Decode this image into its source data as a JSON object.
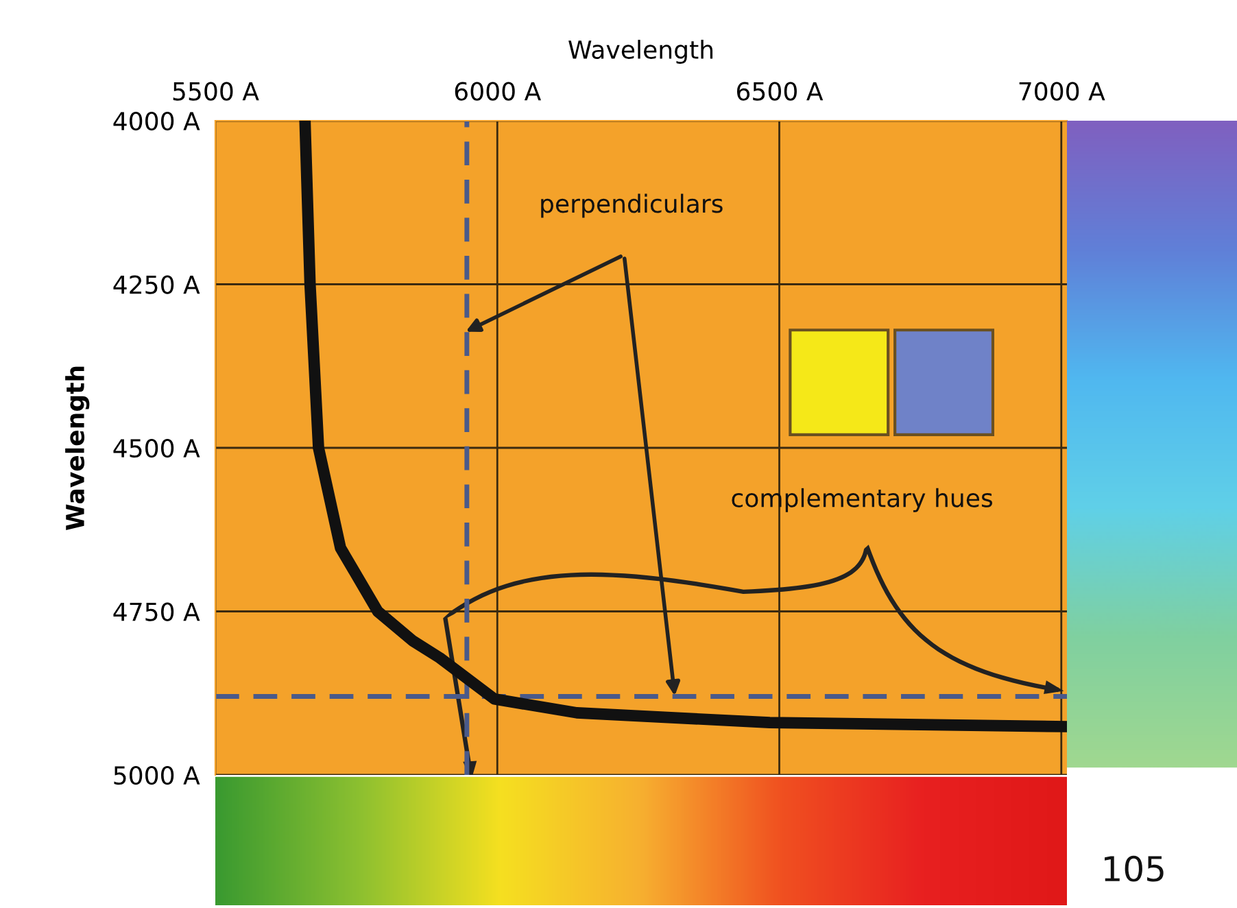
{
  "chart_data": {
    "type": "line",
    "xlabel": "Wavelength",
    "ylabel": "Wavelength",
    "series": [
      {
        "color": "#111111",
        "x": [
          5659,
          5668,
          5683,
          5722,
          5788,
          5850,
          5898,
          5995,
          6141,
          6483,
          7000
        ],
        "values": [
          4000,
          4250,
          4500,
          4653,
          4750,
          4795,
          4821,
          4884,
          4905,
          4920,
          4926
        ]
      }
    ],
    "xlim": [
      5500,
      7010
    ],
    "ylim": [
      5000,
      4000
    ],
    "xticks": [
      {
        "value": 5500,
        "label": "5500 A"
      },
      {
        "value": 6000,
        "label": "6000 A"
      },
      {
        "value": 6500,
        "label": "6500 A"
      },
      {
        "value": 7000,
        "label": "7000 A"
      }
    ],
    "yticks": [
      {
        "value": 4000,
        "label": "4000 A"
      },
      {
        "value": 4250,
        "label": "4250 A"
      },
      {
        "value": 4500,
        "label": "4500 A"
      },
      {
        "value": 4750,
        "label": "4750 A"
      },
      {
        "value": 5000,
        "label": "5000 A"
      }
    ],
    "ref_lines": [
      {
        "axis": "x",
        "value": 5946,
        "color": "#4a5a8a",
        "line_style": "dashed"
      },
      {
        "axis": "y",
        "value": 4880,
        "color": "#4a5a8a",
        "line_style": "dashed"
      }
    ],
    "annotations": [
      "perpendiculars",
      "complementary hues",
      "105"
    ],
    "grid": true,
    "line_style": "solid",
    "marker": "none"
  }
}
